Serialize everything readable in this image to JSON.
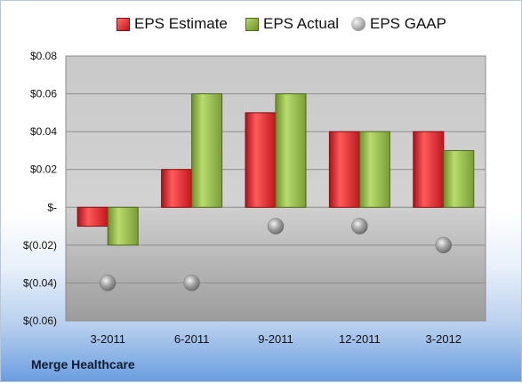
{
  "company_name": "Merge Healthcare",
  "colors": {
    "estimate": "#d21e25",
    "actual": "#8cb04a",
    "gaap": "#a6a6a6"
  },
  "chart_data": {
    "type": "bar",
    "title": "",
    "xlabel": "",
    "ylabel": "",
    "categories": [
      "3-2011",
      "6-2011",
      "9-2011",
      "12-2011",
      "3-2012"
    ],
    "ylim": [
      -0.06,
      0.08
    ],
    "yticks": [
      0.08,
      0.06,
      0.04,
      0.02,
      0,
      -0.02,
      -0.04,
      -0.06
    ],
    "ytick_labels": [
      "$0.08",
      "$0.06",
      "$0.04",
      "$0.02",
      "$-",
      "$(0.02)",
      "$(0.04)",
      "$(0.06)"
    ],
    "grid": true,
    "legend_position": "top",
    "series": [
      {
        "name": "EPS Estimate",
        "type": "bar",
        "values": [
          -0.01,
          0.02,
          0.05,
          0.04,
          0.04
        ]
      },
      {
        "name": "EPS Actual",
        "type": "bar",
        "values": [
          -0.02,
          0.06,
          0.06,
          0.04,
          0.03
        ]
      },
      {
        "name": "EPS GAAP",
        "type": "scatter",
        "values": [
          -0.04,
          -0.04,
          -0.01,
          -0.01,
          -0.02
        ]
      }
    ]
  }
}
